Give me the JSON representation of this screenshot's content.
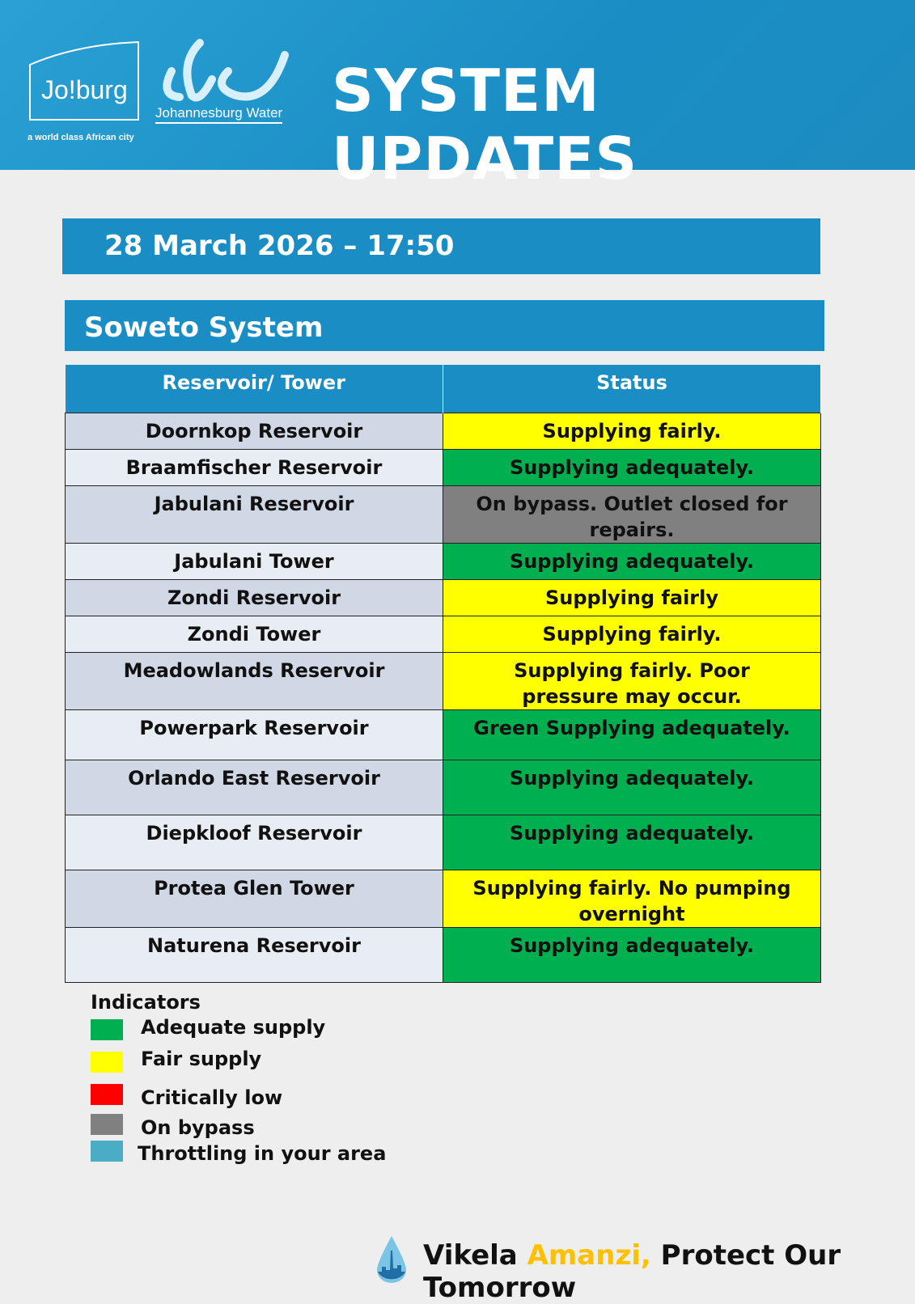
{
  "header": {
    "logo_text": "Joburg",
    "tagline": "a world class African city",
    "water_logo_text": "Johannesburg Water",
    "title": "SYSTEM UPDATES"
  },
  "date": "28 March 2026 – 17:50",
  "system": "Soweto System",
  "table": {
    "headers": [
      "Reservoir/ Tower",
      "Status"
    ],
    "rows": [
      {
        "name": "Doornkop Reservoir",
        "status": "Supplying fairly.",
        "color": "#ffff00"
      },
      {
        "name": "Braamfischer Reservoir",
        "status": "Supplying adequately.",
        "color": "#00b050"
      },
      {
        "name": "Jabulani Reservoir",
        "status": "On bypass. Outlet closed for repairs.",
        "color": "#808080"
      },
      {
        "name": "Jabulani Tower",
        "status": "Supplying adequately.",
        "color": "#00b050"
      },
      {
        "name": "Zondi Reservoir",
        "status": "Supplying fairly",
        "color": "#ffff00"
      },
      {
        "name": "Zondi Tower",
        "status": "Supplying fairly.",
        "color": "#ffff00"
      },
      {
        "name": "Meadowlands Reservoir",
        "status": "Supplying fairly. Poor pressure may occur.",
        "color": "#ffff00"
      },
      {
        "name": "Powerpark Reservoir",
        "status": "Green Supplying adequately.",
        "color": "#00b050"
      },
      {
        "name": "Orlando East Reservoir",
        "status": "Supplying adequately.",
        "color": "#00b050"
      },
      {
        "name": "Diepkloof Reservoir",
        "status": "Supplying adequately.",
        "color": "#00b050"
      },
      {
        "name": "Protea Glen Tower",
        "status": "Supplying fairly. No pumping overnight",
        "color": "#ffff00"
      },
      {
        "name": "Naturena Reservoir",
        "status": "Supplying adequately.",
        "color": "#00b050"
      }
    ]
  },
  "legend": {
    "title": "Indicators",
    "items": [
      {
        "label": "Adequate supply",
        "color": "#00b050"
      },
      {
        "label": "Fair supply",
        "color": "#ffff00"
      },
      {
        "label": "Critically low",
        "color": "#ff0000"
      },
      {
        "label": "On bypass",
        "color": "#808080"
      },
      {
        "label": "Throttling in your area",
        "color": "#4bacc6"
      }
    ]
  },
  "footer": {
    "part1": "Vikela ",
    "part2": "Amanzi,",
    "part3": " Protect Our Tomorrow",
    "accent": "#ffc000"
  }
}
